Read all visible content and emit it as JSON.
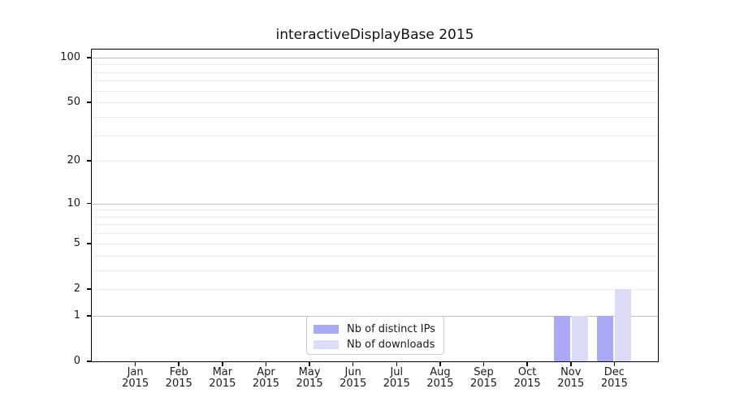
{
  "chart_data": {
    "type": "bar",
    "title": "interactiveDisplayBase 2015",
    "categories": [
      "Jan 2015",
      "Feb 2015",
      "Mar 2015",
      "Apr 2015",
      "May 2015",
      "Jun 2015",
      "Jul 2015",
      "Aug 2015",
      "Sep 2015",
      "Oct 2015",
      "Nov 2015",
      "Dec 2015"
    ],
    "series": [
      {
        "name": "Nb of distinct IPs",
        "color": "#a9a9f3",
        "values": [
          0,
          0,
          0,
          0,
          0,
          0,
          0,
          0,
          0,
          0,
          1,
          1
        ]
      },
      {
        "name": "Nb of downloads",
        "color": "#dcdcf8",
        "values": [
          0,
          0,
          0,
          0,
          0,
          0,
          0,
          0,
          0,
          0,
          1,
          2
        ]
      }
    ],
    "xlabel": "",
    "ylabel": "",
    "yscale": "log1p",
    "ylim": [
      0,
      113
    ],
    "y_ticks": [
      0,
      1,
      2,
      5,
      10,
      20,
      50,
      100
    ],
    "y_gridlines_major": [
      1,
      10,
      100
    ],
    "y_gridlines_minor": [
      2,
      3,
      4,
      5,
      6,
      7,
      8,
      9,
      20,
      30,
      40,
      50,
      60,
      70,
      80,
      90
    ],
    "grid": true,
    "legend": {
      "location": "lower center"
    },
    "colors": {
      "grid_major": "#bcbcbc",
      "grid_minor": "#ececec",
      "spine": "#000000",
      "text": "#1a1a1a"
    }
  }
}
